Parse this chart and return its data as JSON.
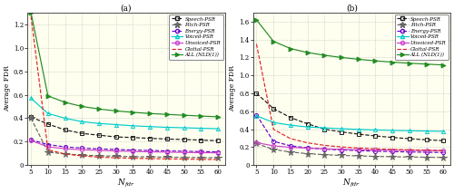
{
  "x": [
    5,
    10,
    15,
    20,
    25,
    30,
    35,
    40,
    45,
    50,
    55,
    60
  ],
  "panel_a": {
    "title": "(a)",
    "ylabel": "Average FDR",
    "xlabel": "N_fdr",
    "ylim": [
      0,
      1.3
    ],
    "yticks": [
      0,
      0.2,
      0.4,
      0.6,
      0.8,
      1.0,
      1.2
    ],
    "Speech_PSR": [
      0.41,
      0.35,
      0.3,
      0.27,
      0.255,
      0.24,
      0.235,
      0.228,
      0.222,
      0.218,
      0.213,
      0.208
    ],
    "Pitch_PSR": [
      0.4,
      0.11,
      0.095,
      0.085,
      0.08,
      0.075,
      0.072,
      0.07,
      0.068,
      0.066,
      0.064,
      0.062
    ],
    "Energy_PSR": [
      0.215,
      0.175,
      0.155,
      0.145,
      0.138,
      0.133,
      0.128,
      0.124,
      0.121,
      0.118,
      0.115,
      0.113
    ],
    "Voiced_PSR": [
      0.57,
      0.44,
      0.4,
      0.37,
      0.355,
      0.345,
      0.335,
      0.328,
      0.322,
      0.318,
      0.314,
      0.31
    ],
    "Unvoiced_PSR": [
      0.21,
      0.155,
      0.14,
      0.13,
      0.125,
      0.12,
      0.116,
      0.113,
      0.11,
      0.108,
      0.106,
      0.104
    ],
    "Glottal_PSR": [
      1.27,
      0.13,
      0.095,
      0.078,
      0.068,
      0.062,
      0.058,
      0.055,
      0.053,
      0.051,
      0.049,
      0.047
    ],
    "ALL_NLD": [
      1.3,
      0.59,
      0.535,
      0.5,
      0.478,
      0.462,
      0.45,
      0.44,
      0.432,
      0.425,
      0.418,
      0.412
    ]
  },
  "panel_b": {
    "title": "(b)",
    "ylabel": "Average FDR",
    "xlabel": "N_fdr",
    "ylim": [
      0,
      1.7
    ],
    "yticks": [
      0,
      0.2,
      0.4,
      0.6,
      0.8,
      1.0,
      1.2,
      1.4,
      1.6
    ],
    "Speech_PSR": [
      0.8,
      0.63,
      0.53,
      0.46,
      0.4,
      0.37,
      0.345,
      0.325,
      0.308,
      0.294,
      0.282,
      0.272
    ],
    "Pitch_PSR": [
      0.24,
      0.175,
      0.145,
      0.128,
      0.116,
      0.108,
      0.102,
      0.097,
      0.093,
      0.09,
      0.087,
      0.085
    ],
    "Energy_PSR": [
      0.56,
      0.265,
      0.215,
      0.192,
      0.178,
      0.168,
      0.161,
      0.155,
      0.15,
      0.146,
      0.143,
      0.14
    ],
    "Voiced_PSR": [
      0.55,
      0.475,
      0.445,
      0.425,
      0.415,
      0.405,
      0.398,
      0.392,
      0.387,
      0.383,
      0.379,
      0.376
    ],
    "Unvoiced_PSR": [
      0.25,
      0.215,
      0.198,
      0.188,
      0.181,
      0.176,
      0.172,
      0.169,
      0.166,
      0.164,
      0.162,
      0.16
    ],
    "Glottal_PSR": [
      1.35,
      0.4,
      0.295,
      0.248,
      0.22,
      0.202,
      0.19,
      0.181,
      0.175,
      0.17,
      0.166,
      0.162
    ],
    "ALL_NLD": [
      1.62,
      1.38,
      1.3,
      1.255,
      1.225,
      1.2,
      1.18,
      1.162,
      1.148,
      1.136,
      1.126,
      1.116
    ]
  },
  "series_styles": {
    "Speech_PSR": {
      "color": "#1a1a1a",
      "linestyle": "--",
      "marker": "s",
      "label": "Speech-PSR"
    },
    "Pitch_PSR": {
      "color": "#666666",
      "linestyle": "--",
      "marker": "*",
      "label": "Pitch-PSR"
    },
    "Energy_PSR": {
      "color": "#6600cc",
      "linestyle": "--",
      "marker": "o",
      "label": "Energy-PSR"
    },
    "Voiced_PSR": {
      "color": "#00cccc",
      "linestyle": "-",
      "marker": "^",
      "label": "Voiced-PSR"
    },
    "Unvoiced_PSR": {
      "color": "#cc44cc",
      "linestyle": "-",
      "marker": "o",
      "label": "Unvoiced-PSR"
    },
    "Glottal_PSR": {
      "color": "#dd2222",
      "linestyle": "--",
      "marker": "none",
      "label": "Glottal-PSR"
    },
    "ALL_NLD": {
      "color": "#228B22",
      "linestyle": "-",
      "marker": ">",
      "label": "ALL (NLD(1))"
    }
  },
  "bg_color": "#fffff0",
  "fig_bg": "#ffffff"
}
